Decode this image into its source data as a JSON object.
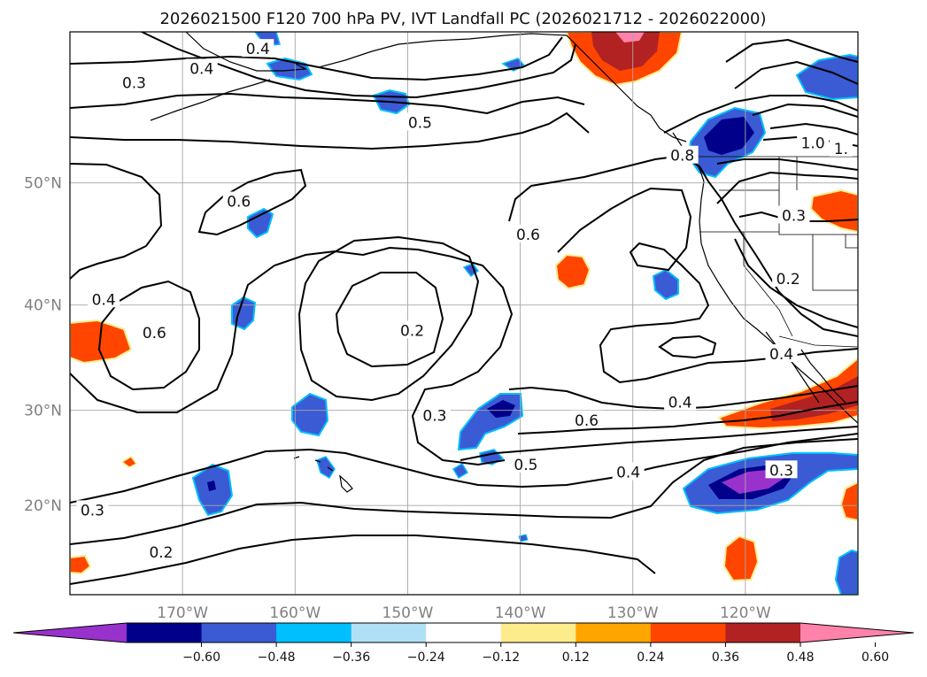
{
  "title": "2026021500 F120 700 hPa PV, IVT Landfall PC (2026021712 - 2026022000)",
  "map": {
    "lon_range": [
      -180,
      -110
    ],
    "lat_range": [
      10,
      60
    ],
    "lon_ticks": [
      {
        "lon": -170,
        "label": "170°W"
      },
      {
        "lon": -160,
        "label": "160°W"
      },
      {
        "lon": -150,
        "label": "150°W"
      },
      {
        "lon": -140,
        "label": "140°W"
      },
      {
        "lon": -130,
        "label": "130°W"
      },
      {
        "lon": -120,
        "label": "120°W"
      }
    ],
    "lat_ticks": [
      {
        "lat": 20,
        "label": "20°N"
      },
      {
        "lat": 30,
        "label": "30°N"
      },
      {
        "lat": 40,
        "label": "40°N"
      },
      {
        "lat": 50,
        "label": "50°N"
      }
    ],
    "grid": true
  },
  "colorbar": {
    "extend": "both",
    "colors": [
      "#9932cc",
      "#00008b",
      "#3a5bd4",
      "#00bfff",
      "#b0e0f6",
      "#ffffff",
      "#fcec8c",
      "#ffa500",
      "#ff4500",
      "#b22222",
      "#ff82ab"
    ],
    "ticks": [
      "−0.60",
      "−0.48",
      "−0.36",
      "−0.24",
      "−0.12",
      "0.12",
      "0.24",
      "0.36",
      "0.48",
      "0.60"
    ]
  },
  "contour_labels": [
    {
      "text": "0.3",
      "lon": -174.3,
      "lat": 56.9
    },
    {
      "text": "0.4",
      "lon": -168.3,
      "lat": 57.8
    },
    {
      "text": "0.5",
      "lon": -148.9,
      "lat": 54.3
    },
    {
      "text": "0.6",
      "lon": -165.0,
      "lat": 48.6
    },
    {
      "text": "0.4",
      "lon": -177.0,
      "lat": 40.5
    },
    {
      "text": "0.6",
      "lon": -172.5,
      "lat": 37.5
    },
    {
      "text": "0.2",
      "lon": -149.6,
      "lat": 37.7
    },
    {
      "text": "0.3",
      "lon": -147.6,
      "lat": 29.5
    },
    {
      "text": "0.6",
      "lon": -139.3,
      "lat": 46.0
    },
    {
      "text": "0.8",
      "lon": -125.6,
      "lat": 52.0
    },
    {
      "text": "1.0",
      "lon": -114.0,
      "lat": 52.9
    },
    {
      "text": "1.",
      "lon": -111.5,
      "lat": 52.5
    },
    {
      "text": "0.3",
      "lon": -115.7,
      "lat": 47.5
    },
    {
      "text": "0.2",
      "lon": -116.2,
      "lat": 42.3
    },
    {
      "text": "0.4",
      "lon": -116.8,
      "lat": 35.5
    },
    {
      "text": "0.4",
      "lon": -125.8,
      "lat": 30.8
    },
    {
      "text": "0.6",
      "lon": -134.1,
      "lat": 29.0
    },
    {
      "text": "0.5",
      "lon": -139.5,
      "lat": 24.4
    },
    {
      "text": "0.4",
      "lon": -130.4,
      "lat": 23.6
    },
    {
      "text": "0.3",
      "lon": -116.8,
      "lat": 23.8
    },
    {
      "text": "0.3",
      "lon": -178.0,
      "lat": 19.5
    },
    {
      "text": "0.2",
      "lon": -171.9,
      "lat": 14.8
    },
    {
      "text": "0.4",
      "lon": -163.3,
      "lat": 59.0
    }
  ]
}
